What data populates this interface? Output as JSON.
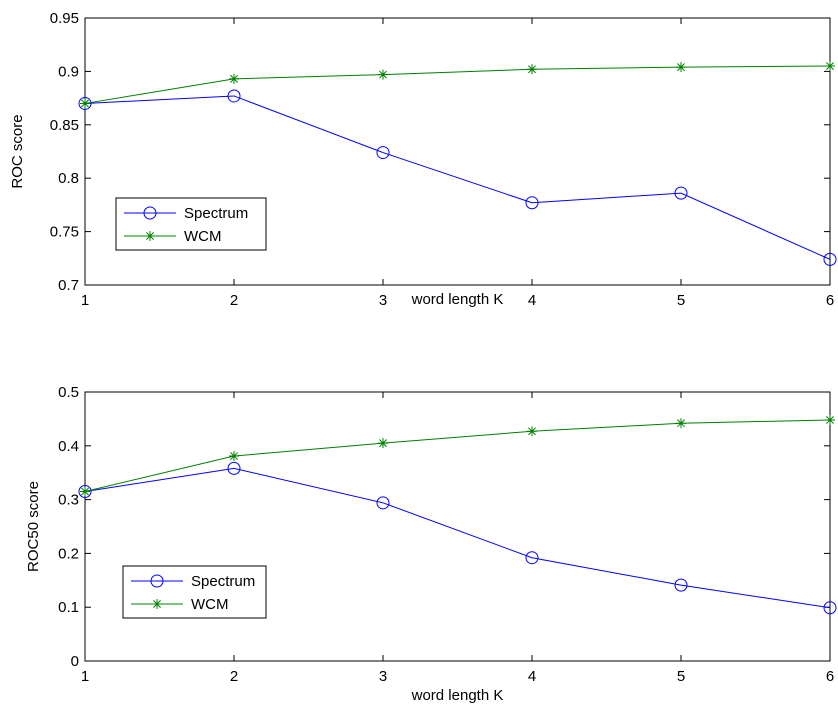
{
  "chart_data": [
    {
      "type": "line",
      "xlabel": "word length K",
      "ylabel": "ROC score",
      "xlim": [
        1,
        6
      ],
      "ylim": [
        0.7,
        0.95
      ],
      "x_ticks": [
        1,
        2,
        3,
        4,
        5,
        6
      ],
      "x_tick_labels": [
        "1",
        "2",
        "3",
        "4",
        "5",
        "6"
      ],
      "y_ticks": [
        0.7,
        0.75,
        0.8,
        0.85,
        0.9,
        0.95
      ],
      "y_tick_labels": [
        "0.7",
        "0.75",
        "0.8",
        "0.85",
        "0.9",
        "0.95"
      ],
      "x": [
        1,
        2,
        3,
        4,
        5,
        6
      ],
      "legend_position": "lower-left",
      "grid": false,
      "series": [
        {
          "name": "Spectrum",
          "marker": "circle",
          "color": "#0000ff",
          "values": [
            0.87,
            0.877,
            0.824,
            0.777,
            0.786,
            0.724
          ]
        },
        {
          "name": "WCM",
          "marker": "star",
          "color": "#008000",
          "values": [
            0.87,
            0.893,
            0.897,
            0.902,
            0.904,
            0.905
          ]
        }
      ]
    },
    {
      "type": "line",
      "xlabel": "word length K",
      "ylabel": "ROC50 score",
      "xlim": [
        1,
        6
      ],
      "ylim": [
        0,
        0.5
      ],
      "x_ticks": [
        1,
        2,
        3,
        4,
        5,
        6
      ],
      "x_tick_labels": [
        "1",
        "2",
        "3",
        "4",
        "5",
        "6"
      ],
      "y_ticks": [
        0,
        0.1,
        0.2,
        0.3,
        0.4,
        0.5
      ],
      "y_tick_labels": [
        "0",
        "0.1",
        "0.2",
        "0.3",
        "0.4",
        "0.5"
      ],
      "x": [
        1,
        2,
        3,
        4,
        5,
        6
      ],
      "legend_position": "lower-left",
      "grid": false,
      "series": [
        {
          "name": "Spectrum",
          "marker": "circle",
          "color": "#0000ff",
          "values": [
            0.315,
            0.358,
            0.294,
            0.192,
            0.141,
            0.099
          ]
        },
        {
          "name": "WCM",
          "marker": "star",
          "color": "#008000",
          "values": [
            0.315,
            0.381,
            0.405,
            0.427,
            0.442,
            0.448
          ]
        }
      ]
    }
  ]
}
